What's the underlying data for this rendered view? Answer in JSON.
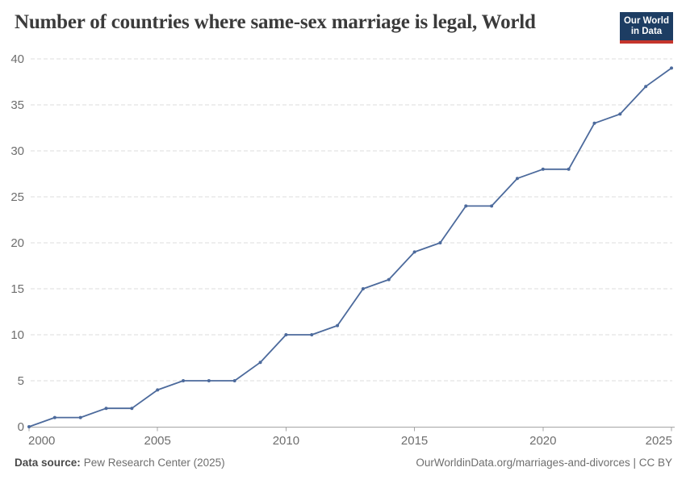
{
  "header": {
    "title": "Number of countries where same-sex marriage is legal, World",
    "logo": {
      "line1": "Our World",
      "line2": "in Data"
    }
  },
  "chart_data": {
    "type": "line",
    "title": "Number of countries where same-sex marriage is legal, World",
    "x": [
      2000,
      2001,
      2002,
      2003,
      2004,
      2005,
      2006,
      2007,
      2008,
      2009,
      2010,
      2011,
      2012,
      2013,
      2014,
      2015,
      2016,
      2017,
      2018,
      2019,
      2020,
      2021,
      2022,
      2023,
      2024,
      2025
    ],
    "series": [
      {
        "name": "World",
        "color": "#4c6a9c",
        "values": [
          0,
          1,
          1,
          2,
          2,
          4,
          5,
          5,
          5,
          7,
          10,
          10,
          11,
          15,
          16,
          19,
          20,
          24,
          24,
          27,
          28,
          28,
          33,
          34,
          37,
          39
        ]
      }
    ],
    "xlabel": "",
    "ylabel": "",
    "xlim": [
      2000,
      2025
    ],
    "ylim": [
      0,
      40
    ],
    "xticks": [
      2000,
      2005,
      2010,
      2015,
      2020,
      2025
    ],
    "yticks": [
      0,
      5,
      10,
      15,
      20,
      25,
      30,
      35,
      40
    ],
    "grid": "horizontal-dashed",
    "legend": "none",
    "marker": "point"
  },
  "footer": {
    "source_label": "Data source:",
    "source_value": "Pew Research Center (2025)",
    "credit": "OurWorldinData.org/marriages-and-divorces | CC BY"
  },
  "colors": {
    "line": "#4c6a9c",
    "grid": "#dddddd",
    "axis": "#a5a5a5",
    "tick_label": "#6e6e6e",
    "title": "#3b3b3b",
    "logo_bg": "#1d3d63",
    "logo_bar": "#c5352c"
  }
}
